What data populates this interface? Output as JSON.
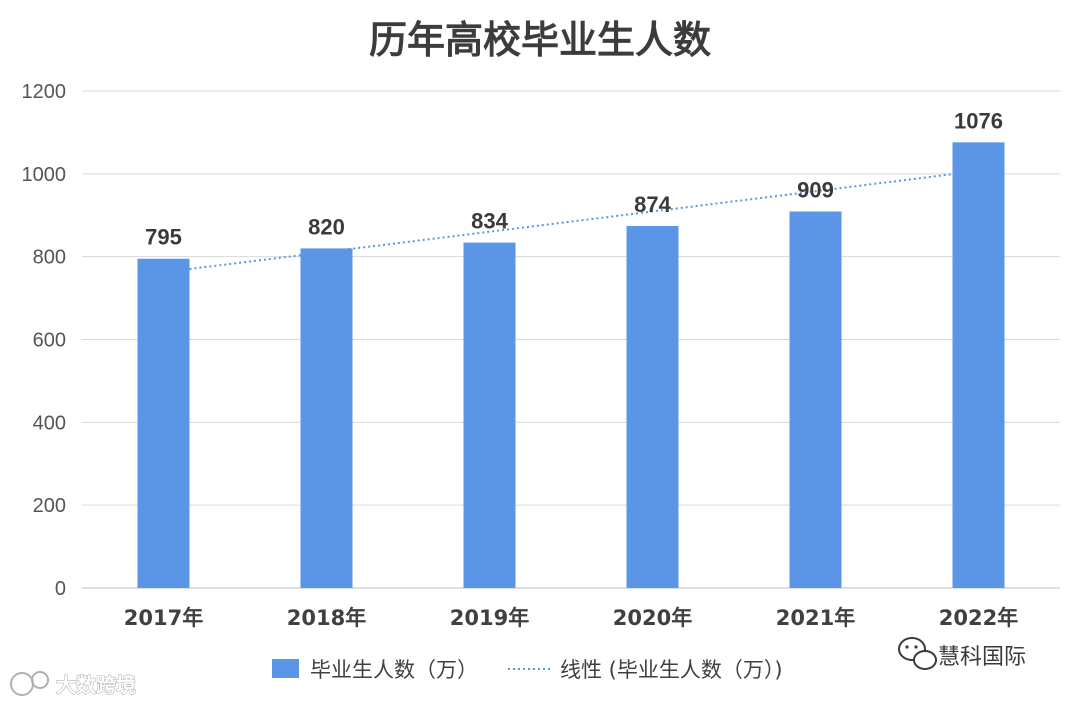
{
  "chart_data": {
    "type": "bar",
    "title": "历年高校毕业生人数",
    "categories": [
      "2017年",
      "2018年",
      "2019年",
      "2020年",
      "2021年",
      "2022年"
    ],
    "series": [
      {
        "name": "毕业生人数（万）",
        "values": [
          795,
          820,
          834,
          874,
          909,
          1076
        ],
        "color": "#5b96e6"
      }
    ],
    "trendline": {
      "type": "linear",
      "name": "线性 (毕业生人数（万）)",
      "color": "#5b96e6",
      "style": "dotted"
    },
    "data_labels": [
      "795",
      "820",
      "834",
      "874",
      "909",
      "1076"
    ],
    "ylim": [
      0,
      1200
    ],
    "yticks": [
      0,
      200,
      400,
      600,
      800,
      1000,
      1200
    ],
    "ytick_labels": [
      "0",
      "200",
      "400",
      "600",
      "800",
      "1000",
      "1200"
    ],
    "grid": true,
    "legend_position": "bottom"
  },
  "watermarks": {
    "left": "大数跨境",
    "right": "慧科国际"
  }
}
